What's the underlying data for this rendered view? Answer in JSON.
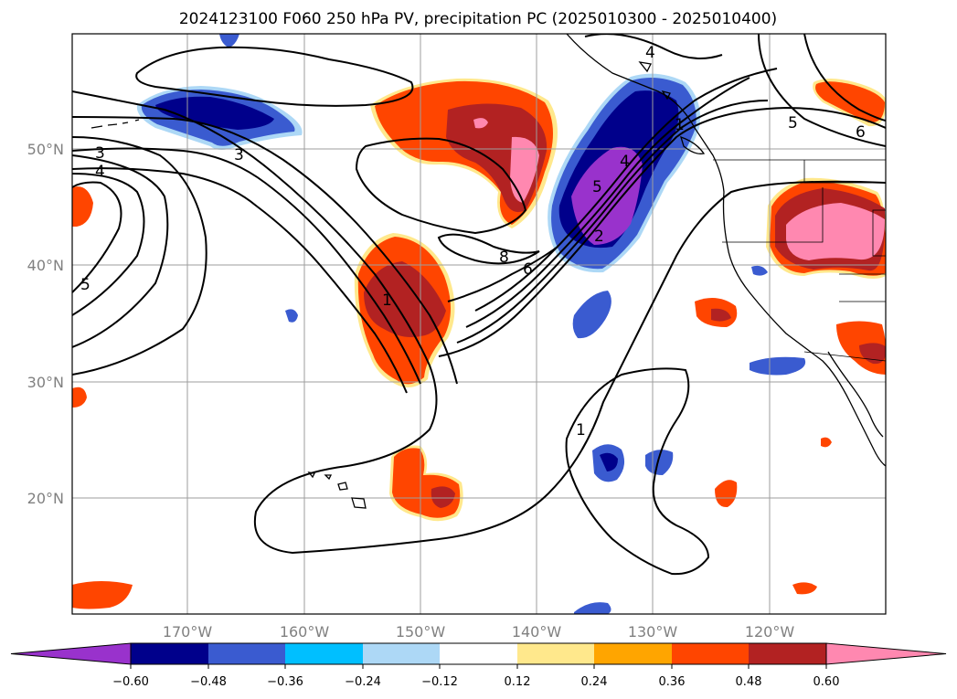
{
  "title": "2024123100 F060 250 hPa PV, precipitation PC (2025010300 - 2025010400)",
  "map": {
    "lat_labels": [
      "50°N",
      "40°N",
      "30°N",
      "20°N"
    ],
    "lon_labels": [
      "170°W",
      "160°W",
      "150°W",
      "140°W",
      "130°W",
      "120°W"
    ],
    "lat_range": [
      10,
      60
    ],
    "lon_range": [
      -180,
      -110
    ],
    "grid": true
  },
  "colorbar": {
    "ticks": [
      "−0.60",
      "−0.48",
      "−0.36",
      "−0.24",
      "−0.12",
      "0.12",
      "0.24",
      "0.36",
      "0.48",
      "0.60"
    ],
    "colors": {
      "lt_-0.60": "#9932cc",
      "-0.60_-0.48": "#00008b",
      "-0.48_-0.36": "#3a5bd0",
      "-0.36_-0.24": "#00bfff",
      "-0.24_-0.12": "#add8f6",
      "-0.12_0.12": "#ffffff",
      "0.12_0.24": "#ffe88c",
      "0.24_0.36": "#ffa500",
      "0.36_0.48": "#ff4500",
      "0.48_0.60": "#b22222",
      "gt_0.60": "#ff88b0"
    },
    "extend": "both"
  },
  "pv_contour_labels": [
    "3",
    "4",
    "3",
    "5",
    "1",
    "8",
    "6",
    "2",
    "5",
    "4",
    "1",
    "5",
    "6",
    "4",
    "1"
  ]
}
